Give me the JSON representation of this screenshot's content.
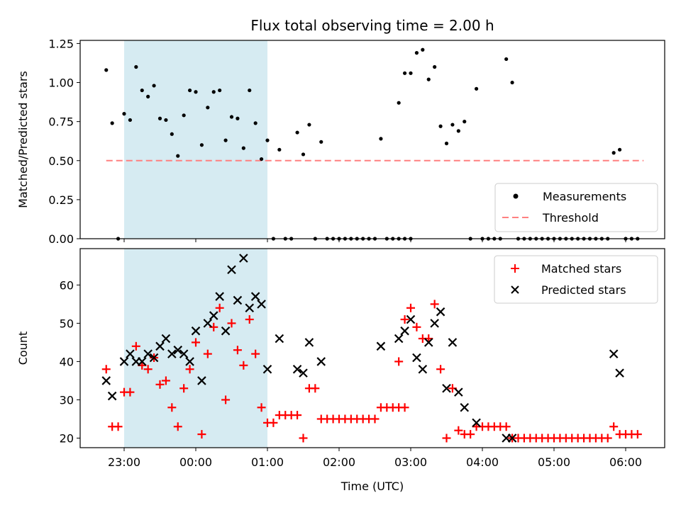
{
  "chart_data": {
    "title": "Flux total observing time = 2.00 h",
    "xlabel": "Time (UTC)",
    "x_ticks": [
      "23:00",
      "00:00",
      "01:00",
      "02:00",
      "03:00",
      "04:00",
      "05:00",
      "06:00"
    ],
    "observing_window": {
      "start": "23:00",
      "end": "01:00",
      "color": "#add8e6"
    },
    "panels": [
      {
        "type": "scatter",
        "ylabel": "Matched/Predicted stars",
        "ylim": [
          0,
          1.27
        ],
        "y_ticks": [
          "0.00",
          "0.25",
          "0.50",
          "0.75",
          "1.00",
          "1.25"
        ],
        "legend_position": "bottom-right",
        "threshold": {
          "name": "Threshold",
          "value": 0.5,
          "x_start": "22:45",
          "x_end": "06:15",
          "color": "#ff8080"
        },
        "series": [
          {
            "name": "Measurements",
            "color": "#000000",
            "marker": "dot",
            "points": [
              [
                "22:45",
                1.08
              ],
              [
                "22:50",
                0.74
              ],
              [
                "22:55",
                0.0
              ],
              [
                "23:00",
                0.8
              ],
              [
                "23:05",
                0.76
              ],
              [
                "23:10",
                1.1
              ],
              [
                "23:15",
                0.95
              ],
              [
                "23:20",
                0.91
              ],
              [
                "23:25",
                0.98
              ],
              [
                "23:30",
                0.77
              ],
              [
                "23:35",
                0.76
              ],
              [
                "23:40",
                0.67
              ],
              [
                "23:45",
                0.53
              ],
              [
                "23:50",
                0.79
              ],
              [
                "23:55",
                0.95
              ],
              [
                "00:00",
                0.94
              ],
              [
                "00:05",
                0.6
              ],
              [
                "00:10",
                0.84
              ],
              [
                "00:15",
                0.94
              ],
              [
                "00:20",
                0.95
              ],
              [
                "00:25",
                0.63
              ],
              [
                "00:30",
                0.78
              ],
              [
                "00:35",
                0.77
              ],
              [
                "00:40",
                0.58
              ],
              [
                "00:45",
                0.95
              ],
              [
                "00:50",
                0.74
              ],
              [
                "00:55",
                0.51
              ],
              [
                "01:00",
                0.63
              ],
              [
                "01:05",
                0.0
              ],
              [
                "01:10",
                0.57
              ],
              [
                "01:15",
                0.0
              ],
              [
                "01:20",
                0.0
              ],
              [
                "01:25",
                0.68
              ],
              [
                "01:30",
                0.54
              ],
              [
                "01:35",
                0.73
              ],
              [
                "01:40",
                0.0
              ],
              [
                "01:45",
                0.62
              ],
              [
                "01:50",
                0.0
              ],
              [
                "01:55",
                0.0
              ],
              [
                "02:00",
                0.0
              ],
              [
                "02:05",
                0.0
              ],
              [
                "02:10",
                0.0
              ],
              [
                "02:15",
                0.0
              ],
              [
                "02:20",
                0.0
              ],
              [
                "02:25",
                0.0
              ],
              [
                "02:30",
                0.0
              ],
              [
                "02:35",
                0.64
              ],
              [
                "02:40",
                0.0
              ],
              [
                "02:45",
                0.0
              ],
              [
                "02:50",
                0.0
              ],
              [
                "02:55",
                0.0
              ],
              [
                "03:00",
                0.0
              ],
              [
                "02:50",
                0.87
              ],
              [
                "02:55",
                1.06
              ],
              [
                "03:00",
                1.06
              ],
              [
                "03:05",
                1.19
              ],
              [
                "03:10",
                1.21
              ],
              [
                "03:15",
                1.02
              ],
              [
                "03:20",
                1.1
              ],
              [
                "03:25",
                0.72
              ],
              [
                "03:30",
                0.61
              ],
              [
                "03:35",
                0.73
              ],
              [
                "03:40",
                0.69
              ],
              [
                "03:45",
                0.75
              ],
              [
                "03:50",
                0.0
              ],
              [
                "03:55",
                0.96
              ],
              [
                "04:00",
                0.0
              ],
              [
                "04:05",
                0.0
              ],
              [
                "04:10",
                0.0
              ],
              [
                "04:15",
                0.0
              ],
              [
                "04:20",
                1.15
              ],
              [
                "04:25",
                1.0
              ],
              [
                "04:30",
                0.0
              ],
              [
                "04:35",
                0.0
              ],
              [
                "04:40",
                0.0
              ],
              [
                "04:45",
                0.0
              ],
              [
                "04:50",
                0.0
              ],
              [
                "04:55",
                0.0
              ],
              [
                "05:00",
                0.0
              ],
              [
                "05:05",
                0.0
              ],
              [
                "05:10",
                0.0
              ],
              [
                "05:15",
                0.0
              ],
              [
                "05:20",
                0.0
              ],
              [
                "05:25",
                0.0
              ],
              [
                "05:30",
                0.0
              ],
              [
                "05:35",
                0.0
              ],
              [
                "05:40",
                0.0
              ],
              [
                "05:45",
                0.0
              ],
              [
                "05:50",
                0.55
              ],
              [
                "05:55",
                0.57
              ],
              [
                "06:00",
                0.0
              ],
              [
                "06:05",
                0.0
              ],
              [
                "06:10",
                0.0
              ]
            ]
          }
        ]
      },
      {
        "type": "scatter",
        "ylabel": "Count",
        "ylim": [
          17.5,
          69.5
        ],
        "y_ticks": [
          "20",
          "30",
          "40",
          "50",
          "60"
        ],
        "legend_position": "top-right",
        "series": [
          {
            "name": "Matched stars",
            "color": "#ff0000",
            "marker": "plus",
            "points": [
              [
                "22:45",
                38
              ],
              [
                "22:50",
                23
              ],
              [
                "22:55",
                23
              ],
              [
                "23:00",
                32
              ],
              [
                "23:05",
                32
              ],
              [
                "23:10",
                44
              ],
              [
                "23:15",
                39
              ],
              [
                "23:20",
                38
              ],
              [
                "23:25",
                41
              ],
              [
                "23:30",
                34
              ],
              [
                "23:35",
                35
              ],
              [
                "23:40",
                28
              ],
              [
                "23:45",
                23
              ],
              [
                "23:50",
                33
              ],
              [
                "23:55",
                38
              ],
              [
                "00:00",
                45
              ],
              [
                "00:05",
                21
              ],
              [
                "00:10",
                42
              ],
              [
                "00:15",
                49
              ],
              [
                "00:20",
                54
              ],
              [
                "00:25",
                30
              ],
              [
                "00:30",
                50
              ],
              [
                "00:35",
                43
              ],
              [
                "00:40",
                39
              ],
              [
                "00:45",
                51
              ],
              [
                "00:50",
                42
              ],
              [
                "00:55",
                28
              ],
              [
                "01:00",
                24
              ],
              [
                "01:05",
                24
              ],
              [
                "01:10",
                26
              ],
              [
                "01:15",
                26
              ],
              [
                "01:20",
                26
              ],
              [
                "01:25",
                26
              ],
              [
                "01:30",
                20
              ],
              [
                "01:35",
                33
              ],
              [
                "01:40",
                33
              ],
              [
                "01:45",
                25
              ],
              [
                "01:50",
                25
              ],
              [
                "01:55",
                25
              ],
              [
                "02:00",
                25
              ],
              [
                "02:05",
                25
              ],
              [
                "02:10",
                25
              ],
              [
                "02:15",
                25
              ],
              [
                "02:20",
                25
              ],
              [
                "02:25",
                25
              ],
              [
                "02:30",
                25
              ],
              [
                "02:35",
                28
              ],
              [
                "02:40",
                28
              ],
              [
                "02:45",
                28
              ],
              [
                "02:50",
                28
              ],
              [
                "02:55",
                28
              ],
              [
                "02:50",
                40
              ],
              [
                "02:55",
                51
              ],
              [
                "03:00",
                54
              ],
              [
                "03:05",
                49
              ],
              [
                "03:10",
                46
              ],
              [
                "03:15",
                46
              ],
              [
                "03:20",
                55
              ],
              [
                "03:25",
                38
              ],
              [
                "03:30",
                20
              ],
              [
                "03:35",
                33
              ],
              [
                "03:40",
                22
              ],
              [
                "03:45",
                21
              ],
              [
                "03:50",
                21
              ],
              [
                "03:55",
                23
              ],
              [
                "04:00",
                23
              ],
              [
                "04:05",
                23
              ],
              [
                "04:10",
                23
              ],
              [
                "04:15",
                23
              ],
              [
                "04:20",
                23
              ],
              [
                "04:25",
                20
              ],
              [
                "04:30",
                20
              ],
              [
                "04:35",
                20
              ],
              [
                "04:40",
                20
              ],
              [
                "04:45",
                20
              ],
              [
                "04:50",
                20
              ],
              [
                "04:55",
                20
              ],
              [
                "05:00",
                20
              ],
              [
                "05:05",
                20
              ],
              [
                "05:10",
                20
              ],
              [
                "05:15",
                20
              ],
              [
                "05:20",
                20
              ],
              [
                "05:25",
                20
              ],
              [
                "05:30",
                20
              ],
              [
                "05:35",
                20
              ],
              [
                "05:40",
                20
              ],
              [
                "05:45",
                20
              ],
              [
                "05:50",
                23
              ],
              [
                "05:55",
                21
              ],
              [
                "06:00",
                21
              ],
              [
                "06:05",
                21
              ],
              [
                "06:10",
                21
              ]
            ]
          },
          {
            "name": "Predicted stars",
            "color": "#000000",
            "marker": "x",
            "points": [
              [
                "22:45",
                35
              ],
              [
                "22:50",
                31
              ],
              [
                "23:00",
                40
              ],
              [
                "23:05",
                42
              ],
              [
                "23:10",
                40
              ],
              [
                "23:15",
                40
              ],
              [
                "23:20",
                42
              ],
              [
                "23:25",
                41
              ],
              [
                "23:30",
                44
              ],
              [
                "23:35",
                46
              ],
              [
                "23:40",
                42
              ],
              [
                "23:45",
                43
              ],
              [
                "23:50",
                42
              ],
              [
                "23:55",
                40
              ],
              [
                "00:00",
                48
              ],
              [
                "00:05",
                35
              ],
              [
                "00:10",
                50
              ],
              [
                "00:15",
                52
              ],
              [
                "00:20",
                57
              ],
              [
                "00:25",
                48
              ],
              [
                "00:30",
                64
              ],
              [
                "00:35",
                56
              ],
              [
                "00:40",
                67
              ],
              [
                "00:45",
                54
              ],
              [
                "00:50",
                57
              ],
              [
                "00:55",
                55
              ],
              [
                "01:00",
                38
              ],
              [
                "01:10",
                46
              ],
              [
                "01:25",
                38
              ],
              [
                "01:30",
                37
              ],
              [
                "01:35",
                45
              ],
              [
                "01:45",
                40
              ],
              [
                "02:35",
                44
              ],
              [
                "02:50",
                46
              ],
              [
                "02:55",
                48
              ],
              [
                "03:00",
                51
              ],
              [
                "03:05",
                41
              ],
              [
                "03:10",
                38
              ],
              [
                "03:15",
                45
              ],
              [
                "03:20",
                50
              ],
              [
                "03:25",
                53
              ],
              [
                "03:30",
                33
              ],
              [
                "03:35",
                45
              ],
              [
                "03:40",
                32
              ],
              [
                "03:45",
                28
              ],
              [
                "03:55",
                24
              ],
              [
                "04:20",
                20
              ],
              [
                "04:25",
                20
              ],
              [
                "05:50",
                42
              ],
              [
                "05:55",
                37
              ]
            ]
          }
        ]
      }
    ]
  }
}
